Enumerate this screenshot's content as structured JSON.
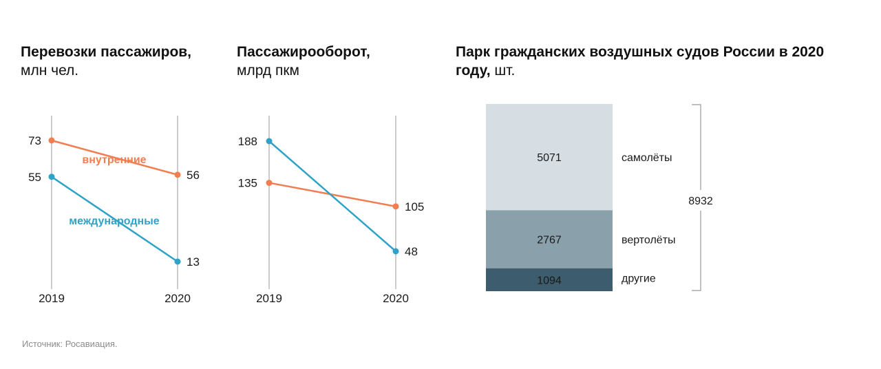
{
  "charts": [
    {
      "title_bold": "Перевозки пассажиров,",
      "title_rest": " млн чел."
    },
    {
      "title_bold": "Пассажирооборот,",
      "title_rest": "млрд пкм"
    },
    {
      "title_bold": "Парк гражданских воздушных судов России в 2020 году,",
      "title_rest": " шт."
    }
  ],
  "source": "Источник: Росавиация.",
  "colors": {
    "internal": "#f07e50",
    "international": "#2ea3c7",
    "axis": "#999999"
  },
  "chart_data": [
    {
      "type": "line",
      "x": [
        "2019",
        "2020"
      ],
      "series": [
        {
          "name": "внутренние",
          "values": [
            73,
            56
          ],
          "color": "#f07e50"
        },
        {
          "name": "международные",
          "values": [
            55,
            13
          ],
          "color": "#2ea3c7"
        }
      ]
    },
    {
      "type": "line",
      "x": [
        "2019",
        "2020"
      ],
      "series": [
        {
          "values": [
            135,
            105
          ],
          "color": "#f07e50"
        },
        {
          "values": [
            188,
            48
          ],
          "color": "#2ea3c7"
        }
      ]
    },
    {
      "type": "bar",
      "stacked": true,
      "categories": [
        "самолёты",
        "вертолёты",
        "другие"
      ],
      "values": [
        5071,
        2767,
        1094
      ],
      "colors": [
        "#d6dde3",
        "#8aa0ab",
        "#3d5c6d"
      ],
      "total": 8932
    }
  ]
}
